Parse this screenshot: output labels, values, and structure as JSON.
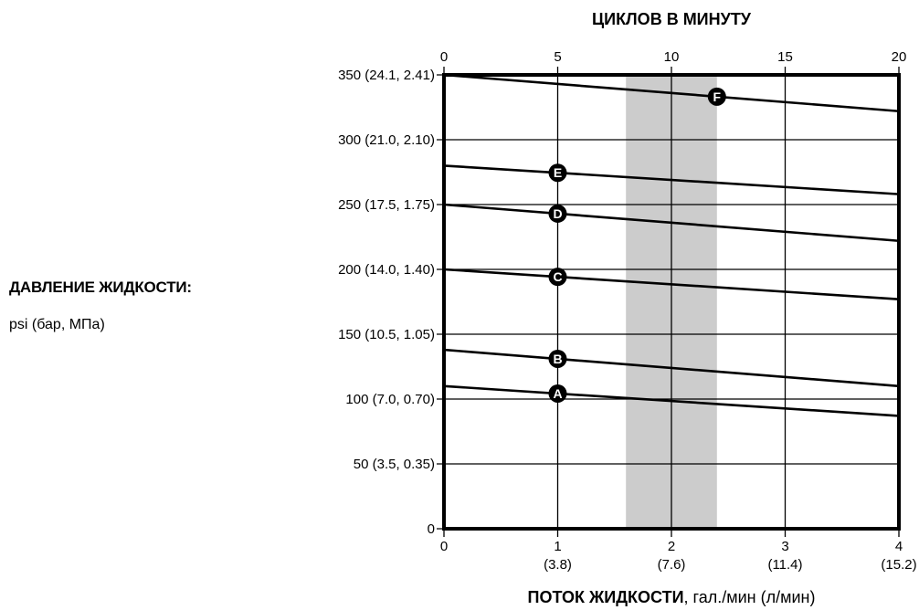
{
  "chart_data": {
    "type": "line",
    "title": "ЦИКЛОВ В МИНУТУ",
    "top_axis": {
      "label": "ЦИКЛОВ В МИНУТУ",
      "ticks": [
        "0",
        "5",
        "10",
        "15",
        "20"
      ],
      "range": [
        0,
        20
      ]
    },
    "x_axis": {
      "label_bold": "ПОТОК ЖИДКОСТИ",
      "label_rest": ", гал./мин (л/мин)",
      "range": [
        0,
        4
      ],
      "ticks": [
        {
          "v": 0,
          "main": "0",
          "sub": ""
        },
        {
          "v": 1,
          "main": "1",
          "sub": "(3.8)"
        },
        {
          "v": 2,
          "main": "2",
          "sub": "(7.6)"
        },
        {
          "v": 3,
          "main": "3",
          "sub": "(11.4)"
        },
        {
          "v": 4,
          "main": "4",
          "sub": "(15.2)"
        }
      ]
    },
    "y_axis": {
      "label_title": "ДАВЛЕНИЕ ЖИДКОСТИ:",
      "label_units": "psi (бар, МПа)",
      "range": [
        0,
        350
      ],
      "ticks": [
        {
          "v": 0,
          "label": "0"
        },
        {
          "v": 50,
          "label": "50 (3.5, 0.35)"
        },
        {
          "v": 100,
          "label": "100 (7.0, 0.70)"
        },
        {
          "v": 150,
          "label": "150 (10.5, 1.05)"
        },
        {
          "v": 200,
          "label": "200 (14.0, 1.40)"
        },
        {
          "v": 250,
          "label": "250 (17.5, 1.75)"
        },
        {
          "v": 300,
          "label": "300 (21.0, 2.10)"
        },
        {
          "v": 350,
          "label": "350 (24.1, 2.41)"
        }
      ]
    },
    "shaded_band": {
      "x": [
        1.6,
        2.4
      ],
      "color": "#cccccc"
    },
    "grid": true,
    "series": [
      {
        "name": "A",
        "x": [
          0,
          4
        ],
        "y": [
          110,
          87
        ],
        "marker_x": 1
      },
      {
        "name": "B",
        "x": [
          0,
          4
        ],
        "y": [
          138,
          110
        ],
        "marker_x": 1
      },
      {
        "name": "C",
        "x": [
          0,
          4
        ],
        "y": [
          200,
          177
        ],
        "marker_x": 1
      },
      {
        "name": "D",
        "x": [
          0,
          4
        ],
        "y": [
          250,
          222
        ],
        "marker_x": 1
      },
      {
        "name": "E",
        "x": [
          0,
          4
        ],
        "y": [
          280,
          258
        ],
        "marker_x": 1
      },
      {
        "name": "F",
        "x": [
          0,
          4
        ],
        "y": [
          350,
          322
        ],
        "marker_x": 2.4
      }
    ]
  }
}
